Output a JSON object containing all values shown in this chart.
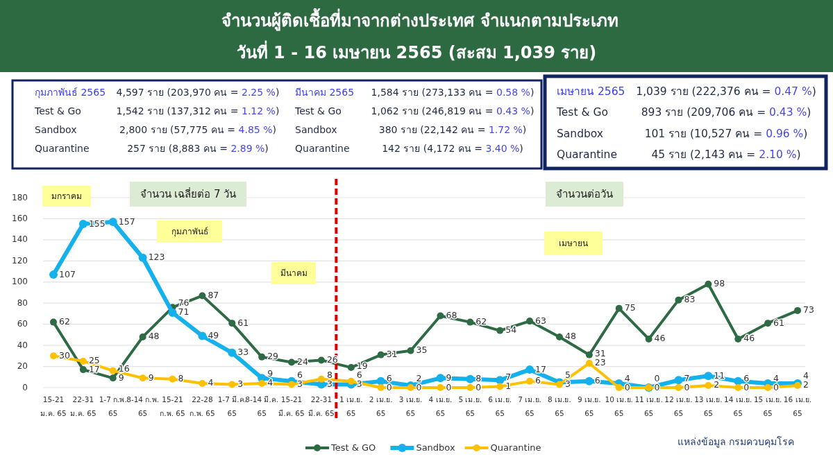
{
  "chart_data": {
    "type": "line",
    "title": "จำนวนผู้ติดเชื้อที่มาจากต่างประเทศ จำแนกตามประเภท",
    "subtitle": "วันที่ 1 - 16 เมษายน 2565 (สะสม 1,039 ราย)",
    "categories": [
      "15-21\nม.ค. 65",
      "22-31\nม.ค. 65",
      "1-7 ก.พ.\n65",
      "8-14 ก.พ.\n65",
      "15-21\nก.พ. 65",
      "22-28\nก.พ. 65",
      "1-7 มี.ค.\n65",
      "8-14 มี.ค.\n65",
      "15-21\nมี.ค. 65",
      "22-31\nมี.ค. 65",
      "1 เม.ย.\n65",
      "2 เม.ย.\n65",
      "3 เม.ย.\n65",
      "4 เม.ย.\n65",
      "5 เม.ย.\n65",
      "6 เม.ย.\n65",
      "7 เม.ย.\n65",
      "8 เม.ย.\n65",
      "9 เม.ย.\n65",
      "10 เม.ย.\n65",
      "11 เม.ย.\n65",
      "12 เม.ย.\n65",
      "13 เม.ย.\n65",
      "14 เม.ย.\n65",
      "15 เม.ย.\n65",
      "16 เม.ย.\n65"
    ],
    "series": [
      {
        "name": "Test & GO",
        "color": "#2e6b45",
        "values": [
          62,
          17,
          9,
          48,
          76,
          87,
          61,
          29,
          24,
          26,
          19,
          31,
          35,
          68,
          62,
          54,
          63,
          48,
          31,
          75,
          46,
          83,
          98,
          46,
          61,
          73
        ]
      },
      {
        "name": "Sandbox",
        "color": "#14b1ec",
        "values": [
          107,
          155,
          157,
          123,
          71,
          49,
          33,
          9,
          6,
          3,
          3,
          6,
          2,
          9,
          8,
          7,
          17,
          5,
          6,
          4,
          0,
          7,
          11,
          6,
          4,
          4
        ]
      },
      {
        "name": "Quarantine",
        "color": "#ffc000",
        "values": [
          30,
          25,
          16,
          9,
          8,
          4,
          3,
          4,
          3,
          8,
          6,
          0,
          0,
          0,
          0,
          1,
          6,
          3,
          23,
          0,
          0,
          0,
          2,
          0,
          0,
          2
        ]
      }
    ],
    "ylim": [
      0,
      180
    ],
    "yticks": [
      0,
      20,
      40,
      60,
      80,
      100,
      120,
      140,
      160,
      180
    ],
    "grid": "y",
    "legend": "bottom",
    "marker": "circle",
    "data_labels": true,
    "annotations": [
      "กุมภาพันธ์ 2565",
      "4,597 ราย (203,970 คน = 2.25 %)",
      "Test & Go",
      "1,542 ราย (137,312 คน = 1.12 %)",
      "Sandbox",
      "2,800 ราย (57,775 คน = 4.85 %)",
      "Quarantine",
      "257 ราย (8,883 คน = 2.89 %)",
      "มีนาคม 2565",
      "1,584 ราย (273,133 คน = 0.58 %)",
      "Test & Go",
      "1,062 ราย (246,819 คน = 0.43 %)",
      "Sandbox",
      "380 ราย (22,142 คน = 1.72 %)",
      "Quarantine",
      "142 ราย (4,172 คน = 3.40 %)",
      "เมษายน 2565",
      "1,039 ราย (222,376 คน = 0.47 %)",
      "Test & Go",
      "893 ราย (209,706 คน = 0.43 %)",
      "Sandbox",
      "101 ราย (10,527 คน = 0.96 %)",
      "Quarantine",
      "45 ราย (2,143 คน = 2.10 %)",
      "จำนวน เฉลี่ยต่อ 7 วัน",
      "จำนวนต่อวัน",
      "มกราคม",
      "กุมภาพันธ์",
      "มีนาคม",
      "เมษายน",
      "แหล่งข้อมูล กรมควบคุมโรค"
    ]
  }
}
